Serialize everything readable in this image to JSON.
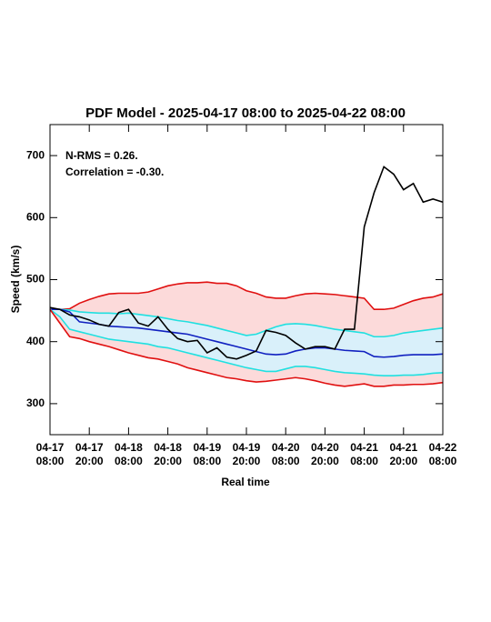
{
  "chart_data": {
    "type": "line",
    "title": "PDF Model - 2025-04-17 08:00 to 2025-04-22 08:00",
    "xlabel": "Real time",
    "ylabel": "Speed (km/s)",
    "annotations": [
      "N-RMS = 0.26.",
      "Correlation = -0.30."
    ],
    "x": [
      "04-17 08:00",
      "04-17 11:00",
      "04-17 14:00",
      "04-17 17:00",
      "04-17 20:00",
      "04-17 23:00",
      "04-18 02:00",
      "04-18 05:00",
      "04-18 08:00",
      "04-18 11:00",
      "04-18 14:00",
      "04-18 17:00",
      "04-18 20:00",
      "04-18 23:00",
      "04-19 02:00",
      "04-19 05:00",
      "04-19 08:00",
      "04-19 11:00",
      "04-19 14:00",
      "04-19 17:00",
      "04-19 20:00",
      "04-19 23:00",
      "04-20 02:00",
      "04-20 05:00",
      "04-20 08:00",
      "04-20 11:00",
      "04-20 14:00",
      "04-20 17:00",
      "04-20 20:00",
      "04-20 23:00",
      "04-21 02:00",
      "04-21 05:00",
      "04-21 08:00",
      "04-21 11:00",
      "04-21 14:00",
      "04-21 17:00",
      "04-21 20:00",
      "04-21 23:00",
      "04-22 02:00",
      "04-22 05:00",
      "04-22 08:00"
    ],
    "xlim": [
      "04-17 08:00",
      "04-22 08:00"
    ],
    "xticks": [
      "04-17 08:00",
      "04-17 20:00",
      "04-18 08:00",
      "04-18 20:00",
      "04-19 08:00",
      "04-19 20:00",
      "04-20 08:00",
      "04-20 20:00",
      "04-21 08:00",
      "04-21 20:00",
      "04-22 08:00"
    ],
    "ylim": [
      250,
      750
    ],
    "yticks": [
      300,
      400,
      500,
      600,
      700
    ],
    "series": [
      {
        "color": "#e01010",
        "values": [
          452,
          452,
          453,
          462,
          468,
          473,
          477,
          478,
          478,
          478,
          480,
          485,
          490,
          493,
          495,
          495,
          496,
          494,
          494,
          490,
          482,
          478,
          472,
          470,
          470,
          474,
          477,
          478,
          477,
          476,
          474,
          472,
          470,
          452,
          452,
          454,
          460,
          466,
          470,
          472,
          477
        ]
      },
      {
        "color": "#20e0e0",
        "values": [
          452,
          452,
          451,
          448,
          447,
          446,
          446,
          445,
          446,
          444,
          442,
          440,
          437,
          434,
          432,
          429,
          426,
          422,
          418,
          414,
          410,
          412,
          418,
          424,
          428,
          429,
          428,
          426,
          423,
          420,
          418,
          416,
          414,
          408,
          408,
          410,
          414,
          416,
          418,
          420,
          422
        ]
      },
      {
        "color": "#1020c0",
        "values": [
          452,
          452,
          448,
          432,
          430,
          428,
          425,
          424,
          423,
          422,
          420,
          418,
          416,
          414,
          412,
          408,
          404,
          400,
          396,
          392,
          388,
          384,
          380,
          379,
          380,
          385,
          388,
          390,
          390,
          388,
          386,
          385,
          384,
          376,
          375,
          376,
          378,
          379,
          379,
          379,
          380
        ]
      },
      {
        "color": "#20e0e0",
        "values": [
          452,
          440,
          420,
          416,
          412,
          408,
          404,
          402,
          400,
          398,
          396,
          392,
          390,
          386,
          382,
          378,
          374,
          370,
          366,
          362,
          358,
          355,
          352,
          352,
          356,
          360,
          360,
          358,
          355,
          352,
          350,
          349,
          348,
          346,
          345,
          345,
          346,
          346,
          347,
          349,
          350
        ]
      },
      {
        "color": "#e01010",
        "values": [
          452,
          430,
          408,
          405,
          400,
          396,
          392,
          387,
          382,
          378,
          374,
          372,
          368,
          364,
          358,
          354,
          350,
          346,
          342,
          340,
          337,
          335,
          336,
          338,
          340,
          342,
          340,
          337,
          333,
          330,
          328,
          330,
          332,
          328,
          328,
          330,
          330,
          331,
          331,
          332,
          334
        ]
      },
      {
        "color": "#000000",
        "values": [
          455,
          452,
          443,
          440,
          435,
          428,
          425,
          447,
          452,
          430,
          425,
          440,
          420,
          405,
          400,
          402,
          382,
          390,
          375,
          372,
          378,
          385,
          418,
          415,
          410,
          398,
          388,
          392,
          392,
          388,
          420,
          420,
          585,
          640,
          682,
          670,
          645,
          655,
          625,
          630,
          625
        ]
      }
    ],
    "bands": [
      {
        "between": [
          0,
          4
        ],
        "color": "#fcdada"
      },
      {
        "between": [
          1,
          3
        ],
        "color": "#d9f0fa"
      }
    ]
  }
}
